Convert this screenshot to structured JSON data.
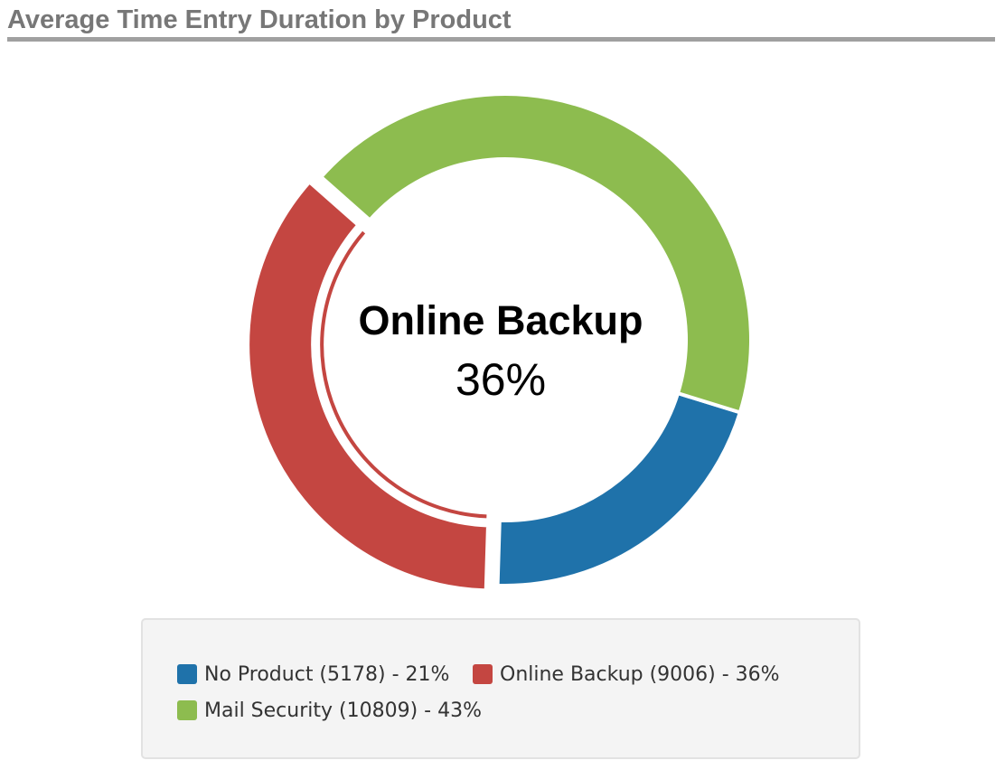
{
  "chart_data": {
    "type": "pie",
    "title": "Average Time Entry Duration by Product",
    "donut": true,
    "selected_index": 1,
    "center_label": {
      "name": "Online Backup",
      "percent_text": "36%"
    },
    "slices": [
      {
        "name": "No Product",
        "value": 5178,
        "percent": 21,
        "color": "#1f72aa",
        "legend_text": "No Product (5178) - 21%"
      },
      {
        "name": "Online Backup",
        "value": 9006,
        "percent": 36,
        "color": "#c44641",
        "legend_text": "Online Backup (9006) - 36%"
      },
      {
        "name": "Mail Security",
        "value": 10809,
        "percent": 43,
        "color": "#8dbc4f",
        "legend_text": "Mail Security (10809) - 43%"
      }
    ],
    "legend": {
      "position": "bottom"
    },
    "grid": false
  }
}
